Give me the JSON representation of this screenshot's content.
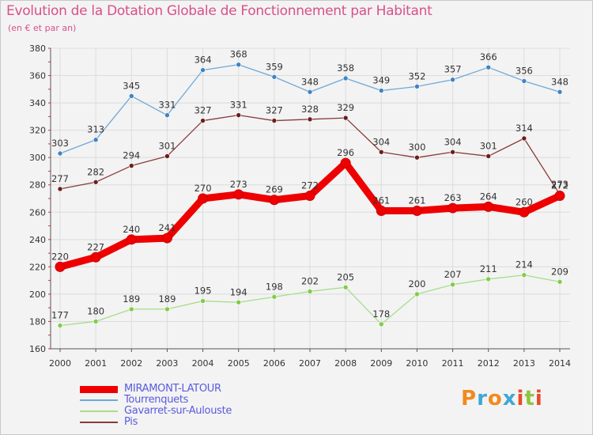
{
  "chart_data": {
    "type": "line",
    "title": "Evolution de la Dotation Globale de Fonctionnement par Habitant",
    "subtitle": "(en € et par an)",
    "xlabel": "",
    "ylabel": "",
    "x": [
      "2000",
      "2001",
      "2002",
      "2003",
      "2004",
      "2005",
      "2006",
      "2007",
      "2008",
      "2009",
      "2010",
      "2011",
      "2012",
      "2013",
      "2014"
    ],
    "ylim": [
      160,
      380
    ],
    "yticks": [
      160,
      180,
      200,
      220,
      240,
      260,
      280,
      300,
      320,
      340,
      360,
      380
    ],
    "grid": true,
    "legend_position": "bottom-left",
    "series": [
      {
        "name": "MIRAMONT-LATOUR",
        "color": "#ee0000",
        "markerColor": "#ee0000",
        "width": "thick",
        "values": [
          220,
          227,
          240,
          241,
          270,
          273,
          269,
          272,
          296,
          261,
          261,
          263,
          264,
          260,
          272
        ]
      },
      {
        "name": "Tourrenquets",
        "color": "#6fa8d8",
        "markerColor": "#3f84c4",
        "width": "thin",
        "values": [
          303,
          313,
          345,
          331,
          364,
          368,
          359,
          348,
          358,
          349,
          352,
          357,
          366,
          356,
          348
        ]
      },
      {
        "name": "Gavarret-sur-Aulouste",
        "color": "#a8dd88",
        "markerColor": "#7fcc4a",
        "width": "thin",
        "values": [
          177,
          180,
          189,
          189,
          195,
          194,
          198,
          202,
          205,
          178,
          200,
          207,
          211,
          214,
          209
        ]
      },
      {
        "name": "Pis",
        "color": "#8a3a3a",
        "markerColor": "#6a1e1e",
        "width": "thin",
        "values": [
          277,
          282,
          294,
          301,
          327,
          331,
          327,
          328,
          329,
          304,
          300,
          304,
          301,
          314,
          273
        ]
      }
    ]
  },
  "logo": {
    "letters": [
      "P",
      "r",
      "o",
      "x",
      "i",
      "t",
      "i"
    ],
    "colors": [
      "#f28a1e",
      "#3fa7d6",
      "#f28a1e",
      "#3fa7d6",
      "#e84c2b",
      "#8cc63f",
      "#e84c2b"
    ]
  }
}
